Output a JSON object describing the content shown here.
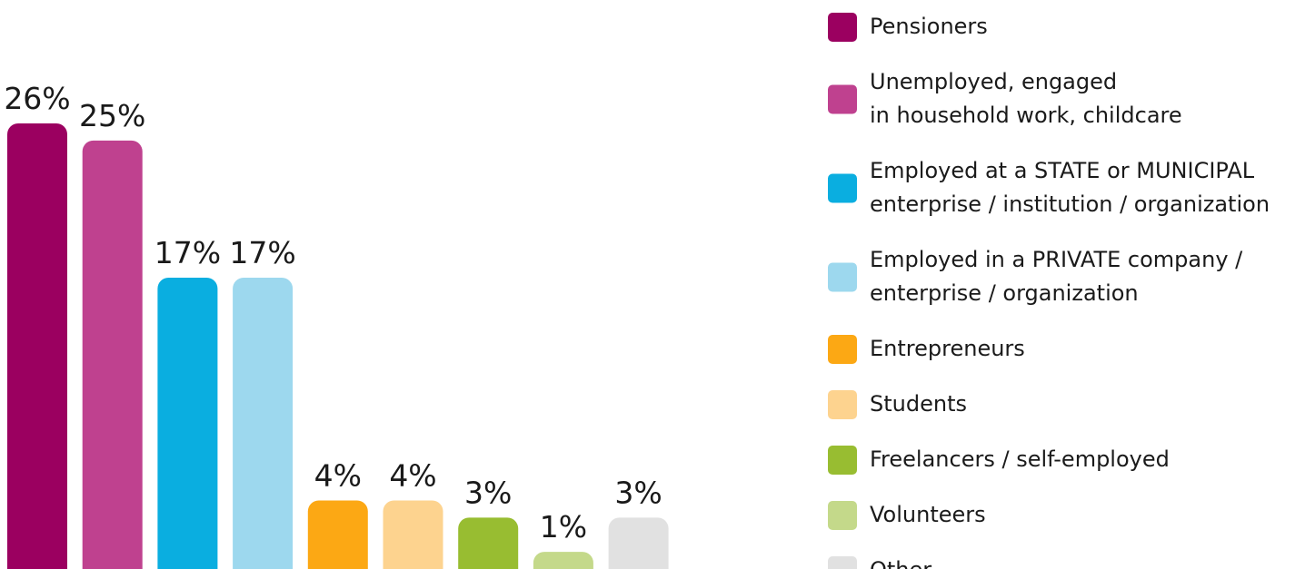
{
  "chart_data": {
    "type": "bar",
    "categories": [
      "Pensioners",
      "Unemployed, engaged\nin household work, childcare",
      "Employed at a STATE or MUNICIPAL\nenterprise / institution / organization",
      "Employed in a PRIVATE company /\nenterprise / organization",
      "Entrepreneurs",
      "Students",
      "Freelancers / self-employed",
      "Volunteers",
      "Other"
    ],
    "values": [
      26,
      25,
      17,
      17,
      4,
      4,
      3,
      1,
      3
    ],
    "value_labels": [
      "26%",
      "25%",
      "17%",
      "17%",
      "4%",
      "4%",
      "3%",
      "1%",
      "3%"
    ],
    "colors": [
      "#9b0060",
      "#bf418f",
      "#0aaee0",
      "#9dd8ee",
      "#fca814",
      "#fdd38f",
      "#98bd31",
      "#c4d98a",
      "#e1e1e1"
    ]
  }
}
